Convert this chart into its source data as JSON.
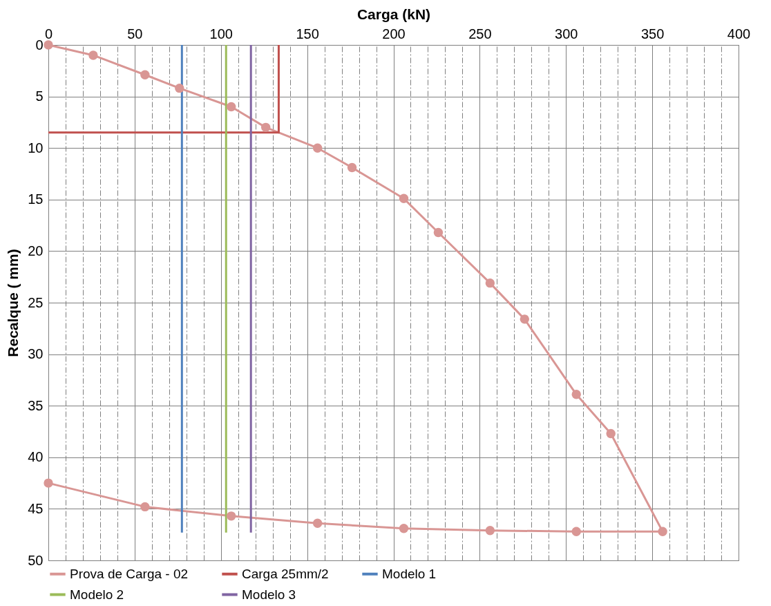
{
  "chart_data": {
    "type": "line",
    "xlabel": "Carga  (kN)",
    "ylabel": "Recalque ( mm)",
    "xlim": [
      0,
      400
    ],
    "ylim": [
      50,
      0
    ],
    "xticks": [
      0,
      {
        "value": 10,
        "label": null
      },
      {
        "value": 20,
        "label": null
      },
      {
        "value": 30,
        "label": null
      },
      {
        "value": 40,
        "label": null
      },
      50,
      {
        "value": 60,
        "label": null
      },
      {
        "value": 70,
        "label": null
      },
      {
        "value": 80,
        "label": null
      },
      {
        "value": 90,
        "label": null
      },
      100,
      {
        "value": 110,
        "label": null
      },
      {
        "value": 120,
        "label": null
      },
      {
        "value": 130,
        "label": null
      },
      {
        "value": 140,
        "label": null
      },
      150,
      {
        "value": 160,
        "label": null
      },
      {
        "value": 170,
        "label": null
      },
      {
        "value": 180,
        "label": null
      },
      {
        "value": 190,
        "label": null
      },
      200,
      {
        "value": 210,
        "label": null
      },
      {
        "value": 220,
        "label": null
      },
      {
        "value": 230,
        "label": null
      },
      {
        "value": 240,
        "label": null
      },
      250,
      {
        "value": 260,
        "label": null
      },
      {
        "value": 270,
        "label": null
      },
      {
        "value": 280,
        "label": null
      },
      {
        "value": 290,
        "label": null
      },
      300,
      {
        "value": 310,
        "label": null
      },
      {
        "value": 320,
        "label": null
      },
      {
        "value": 330,
        "label": null
      },
      {
        "value": 340,
        "label": null
      },
      350,
      {
        "value": 360,
        "label": null
      },
      {
        "value": 370,
        "label": null
      },
      {
        "value": 380,
        "label": null
      },
      {
        "value": 390,
        "label": null
      },
      400
    ],
    "yticks": [
      0,
      5,
      10,
      15,
      20,
      25,
      30,
      35,
      40,
      45,
      50
    ],
    "grid": true,
    "legend": "bottom",
    "line_style": "solid",
    "series": [
      {
        "name": "Prova de Carga - 02",
        "color": "#d99694",
        "marker": "circle",
        "x": [
          0,
          26,
          56,
          76,
          106,
          126,
          156,
          176,
          206,
          226,
          256,
          276,
          306,
          326,
          356,
          306,
          256,
          206,
          156,
          106,
          56,
          0
        ],
        "values": [
          0,
          1,
          2.9,
          4.2,
          6,
          8,
          10,
          11.9,
          14.9,
          18.2,
          23.1,
          26.6,
          33.9,
          37.7,
          47.2,
          47.2,
          47.1,
          46.9,
          46.4,
          45.7,
          44.8,
          42.5
        ]
      },
      {
        "name": "Carga 25mm/2",
        "color": "#c0504d",
        "marker": "none",
        "x": [
          0,
          133.5,
          133.5
        ],
        "values": [
          8.5,
          8.5,
          0
        ]
      },
      {
        "name": "Modelo 1",
        "color": "#4f81bd",
        "marker": "none",
        "x": [
          77.4,
          77.4
        ],
        "values": [
          0,
          47.3
        ]
      },
      {
        "name": "Modelo 2",
        "color": "#9bbb59",
        "marker": "none",
        "x": [
          103,
          103
        ],
        "values": [
          0,
          47.3
        ]
      },
      {
        "name": "Modelo 3",
        "color": "#8064a2",
        "marker": "none",
        "x": [
          117.4,
          117.4
        ],
        "values": [
          0,
          47.3
        ]
      }
    ]
  }
}
